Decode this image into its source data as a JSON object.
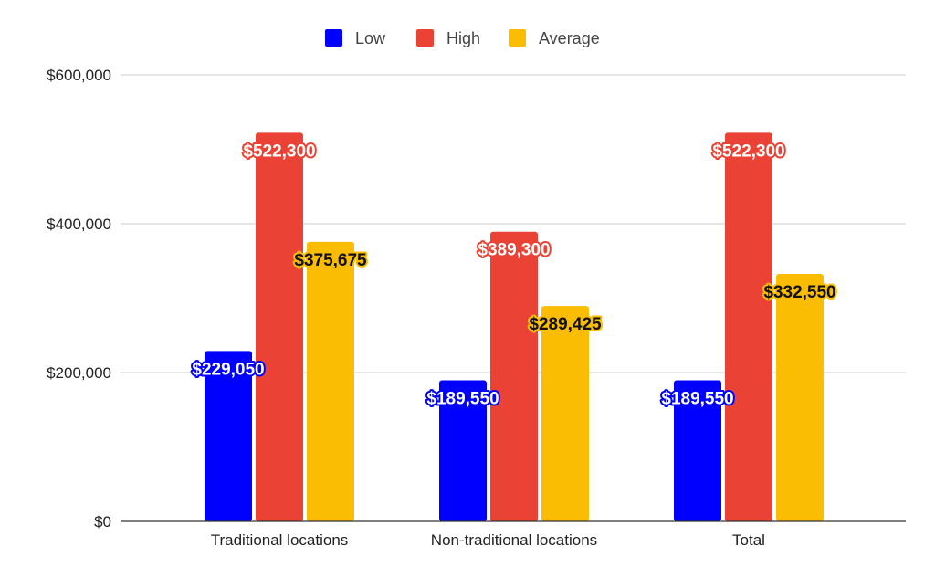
{
  "chart_data": {
    "type": "bar",
    "title": "",
    "xlabel": "",
    "ylabel": "",
    "categories": [
      "Traditional locations",
      "Non-traditional locations",
      "Total"
    ],
    "series": [
      {
        "name": "Low",
        "color": "#0000ff",
        "values": [
          229050,
          189550,
          189550
        ],
        "labels": [
          "$229,050",
          "$189,550",
          "$189,550"
        ]
      },
      {
        "name": "High",
        "color": "#ea4335",
        "values": [
          522300,
          389300,
          522300
        ],
        "labels": [
          "$522,300",
          "$389,300",
          "$522,300"
        ]
      },
      {
        "name": "Average",
        "color": "#fbbc04",
        "values": [
          375675,
          289425,
          332550
        ],
        "labels": [
          "$375,675",
          "$289,425",
          "$332,550"
        ]
      }
    ],
    "ylim": [
      0,
      600000
    ],
    "yticks": [
      0,
      200000,
      400000,
      600000
    ],
    "ytick_labels": [
      "$0",
      "$200,000",
      "$400,000",
      "$600,000"
    ],
    "grid": true,
    "legend_position": "top"
  }
}
